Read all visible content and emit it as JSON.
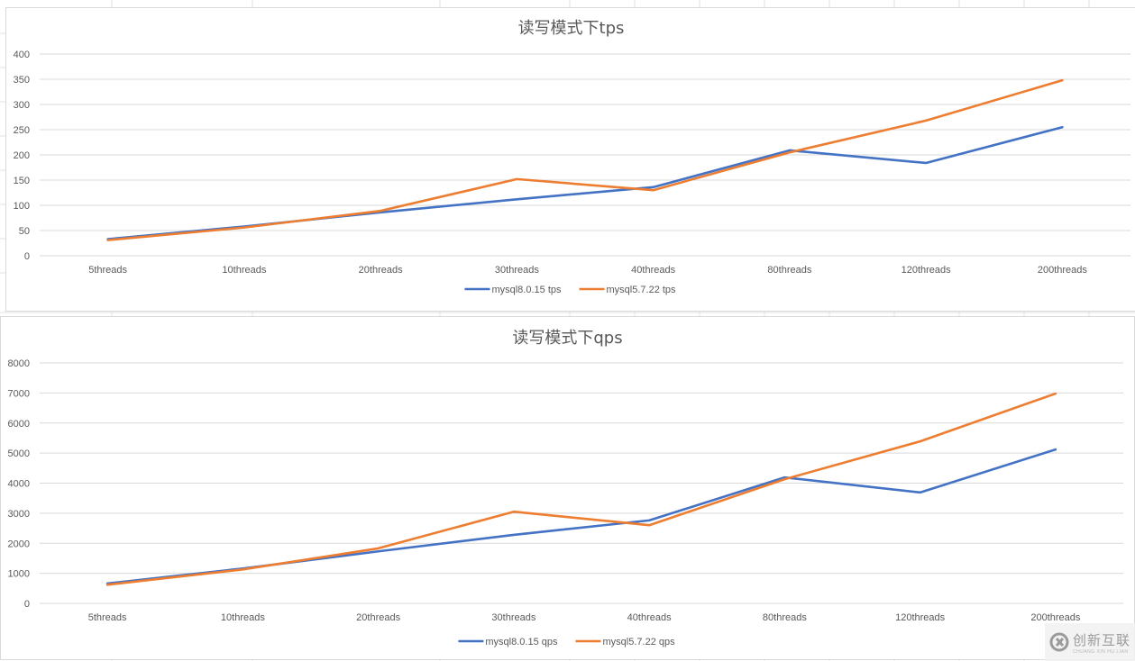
{
  "chart_data": [
    {
      "type": "line",
      "title": "读写模式下tps",
      "xlabel": "",
      "ylabel": "",
      "categories": [
        "5threads",
        "10threads",
        "20threads",
        "30threads",
        "40threads",
        "80threads",
        "120threads",
        "200threads"
      ],
      "series": [
        {
          "name": "mysql8.0.15 tps",
          "color": "#4472c4",
          "values": [
            33,
            58,
            86,
            112,
            136,
            209,
            184,
            255
          ]
        },
        {
          "name": "mysql5.7.22 tps",
          "color": "#ed7d31",
          "values": [
            31,
            56,
            89,
            152,
            130,
            205,
            268,
            348
          ]
        }
      ],
      "ylim": [
        0,
        400
      ],
      "yticks": [
        0,
        50,
        100,
        150,
        200,
        250,
        300,
        350,
        400
      ],
      "grid": true,
      "legend_position": "bottom"
    },
    {
      "type": "line",
      "title": "读写模式下qps",
      "xlabel": "",
      "ylabel": "",
      "categories": [
        "5threads",
        "10threads",
        "20threads",
        "30threads",
        "40threads",
        "80threads",
        "120threads",
        "200threads"
      ],
      "series": [
        {
          "name": "mysql8.0.15 qps",
          "color": "#4472c4",
          "values": [
            660,
            1160,
            1730,
            2280,
            2760,
            4190,
            3690,
            5120
          ]
        },
        {
          "name": "mysql5.7.22 qps",
          "color": "#ed7d31",
          "values": [
            620,
            1130,
            1830,
            3050,
            2600,
            4130,
            5390,
            6980
          ]
        }
      ],
      "ylim": [
        0,
        8000
      ],
      "yticks": [
        0,
        1000,
        2000,
        3000,
        4000,
        5000,
        6000,
        7000,
        8000
      ],
      "grid": true,
      "legend_position": "bottom"
    }
  ],
  "watermark": {
    "text_cn": "创新互联",
    "text_en": "CHUANG XIN HU LIAN"
  }
}
